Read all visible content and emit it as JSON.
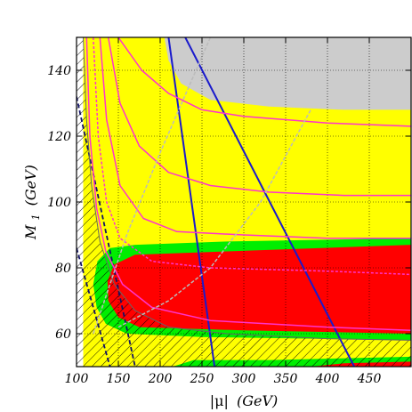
{
  "chart_data": {
    "type": "area",
    "title": "",
    "xlabel_prefix": "|μ|",
    "xlabel_unit": "(GeV)",
    "ylabel_symbol": "M",
    "ylabel_sub": "1",
    "ylabel_unit": "(GeV)",
    "xlim": [
      100,
      500
    ],
    "ylim": [
      50,
      150
    ],
    "xticks": [
      100,
      150,
      200,
      250,
      300,
      350,
      400,
      450
    ],
    "yticks": [
      60,
      80,
      100,
      120,
      140
    ],
    "grid": true,
    "colors": {
      "yellow": "#ffff00",
      "green": "#00ee00",
      "red": "#ff0000",
      "grey": "#cccccc",
      "blue": "#1a1acc",
      "magenta": "#ff33cc",
      "light_grey_line": "#bbbbbb"
    },
    "regions": [
      {
        "name": "yellow",
        "points": [
          [
            108,
            150
          ],
          [
            500,
            150
          ],
          [
            500,
            50
          ],
          [
            108,
            50
          ]
        ]
      },
      {
        "name": "grey",
        "points": [
          [
            205,
            150
          ],
          [
            500,
            150
          ],
          [
            500,
            128
          ],
          [
            420,
            128
          ],
          [
            330,
            129
          ],
          [
            260,
            131
          ],
          [
            225,
            136
          ],
          [
            210,
            143
          ]
        ]
      },
      {
        "name": "green",
        "points": [
          [
            500,
            89
          ],
          [
            280,
            88
          ],
          [
            170,
            87
          ],
          [
            140,
            86
          ],
          [
            125,
            82
          ],
          [
            120,
            75
          ],
          [
            124,
            68
          ],
          [
            135,
            63
          ],
          [
            160,
            60
          ],
          [
            250,
            59
          ],
          [
            500,
            58
          ]
        ]
      },
      {
        "name": "red",
        "points": [
          [
            500,
            87
          ],
          [
            280,
            85
          ],
          [
            170,
            84
          ],
          [
            145,
            81
          ],
          [
            137,
            76
          ],
          [
            138,
            70
          ],
          [
            150,
            65
          ],
          [
            175,
            62
          ],
          [
            300,
            61
          ],
          [
            500,
            60
          ]
        ]
      },
      {
        "name": "green-bottom",
        "points": [
          [
            215,
            50
          ],
          [
            500,
            50
          ],
          [
            500,
            53
          ],
          [
            330,
            52
          ],
          [
            240,
            52
          ]
        ]
      },
      {
        "name": "red-bottom",
        "points": [
          [
            380,
            50
          ],
          [
            500,
            50
          ],
          [
            500,
            51.5
          ],
          [
            420,
            51
          ]
        ]
      }
    ],
    "lines": [
      {
        "name": "blue-left",
        "points": [
          [
            210,
            150
          ],
          [
            265,
            50
          ]
        ]
      },
      {
        "name": "blue-right",
        "points": [
          [
            230,
            150
          ],
          [
            432,
            50
          ]
        ]
      },
      {
        "name": "dark-dashed-1",
        "points": [
          [
            100,
            132
          ],
          [
            170,
            50
          ]
        ]
      },
      {
        "name": "dark-dashed-2",
        "points": [
          [
            100,
            86
          ],
          [
            140,
            50
          ]
        ]
      },
      {
        "name": "boundary",
        "points": [
          [
            108,
            150
          ],
          [
            112,
            125
          ],
          [
            118,
            105
          ],
          [
            128,
            88
          ],
          [
            145,
            75
          ],
          [
            170,
            67
          ],
          [
            210,
            62
          ],
          [
            280,
            60
          ],
          [
            400,
            58.5
          ],
          [
            500,
            58
          ]
        ]
      },
      {
        "name": "magenta-1",
        "points": [
          [
            150,
            150
          ],
          [
            178,
            140
          ],
          [
            210,
            133
          ],
          [
            250,
            128
          ],
          [
            300,
            126
          ],
          [
            400,
            124
          ],
          [
            500,
            123
          ]
        ]
      },
      {
        "name": "magenta-2",
        "points": [
          [
            138,
            150
          ],
          [
            152,
            130
          ],
          [
            175,
            117
          ],
          [
            210,
            109
          ],
          [
            260,
            105
          ],
          [
            330,
            103
          ],
          [
            420,
            102
          ],
          [
            500,
            102
          ]
        ]
      },
      {
        "name": "magenta-3",
        "points": [
          [
            128,
            150
          ],
          [
            136,
            125
          ],
          [
            152,
            105
          ],
          [
            180,
            95
          ],
          [
            220,
            91
          ],
          [
            300,
            90
          ],
          [
            400,
            89
          ],
          [
            500,
            89
          ]
        ]
      },
      {
        "name": "magenta-4",
        "points": [
          [
            120,
            150
          ],
          [
            126,
            120
          ],
          [
            136,
            100
          ],
          [
            152,
            89
          ],
          [
            190,
            82
          ],
          [
            260,
            80
          ],
          [
            400,
            79
          ],
          [
            500,
            78
          ]
        ]
      },
      {
        "name": "magenta-5",
        "points": [
          [
            112,
            150
          ],
          [
            116,
            120
          ],
          [
            124,
            98
          ],
          [
            135,
            85
          ],
          [
            155,
            75
          ],
          [
            190,
            68
          ],
          [
            260,
            64
          ],
          [
            400,
            62
          ],
          [
            500,
            61
          ]
        ]
      },
      {
        "name": "grey-diag-1",
        "points": [
          [
            120,
            60
          ],
          [
            160,
            90
          ],
          [
            200,
            115
          ],
          [
            260,
            150
          ]
        ]
      },
      {
        "name": "grey-diag-2",
        "points": [
          [
            150,
            62
          ],
          [
            210,
            70
          ],
          [
            260,
            80
          ],
          [
            320,
            100
          ],
          [
            380,
            128
          ]
        ]
      }
    ]
  }
}
